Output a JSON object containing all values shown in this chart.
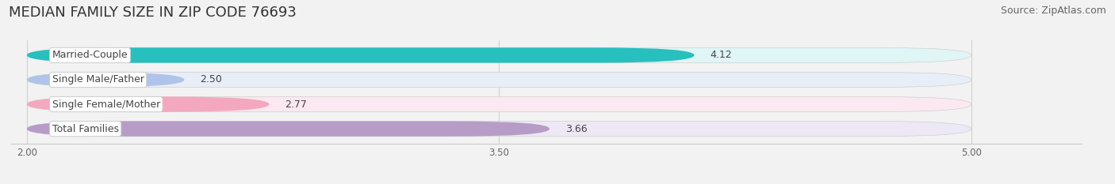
{
  "title": "MEDIAN FAMILY SIZE IN ZIP CODE 76693",
  "source": "Source: ZipAtlas.com",
  "categories": [
    "Married-Couple",
    "Single Male/Father",
    "Single Female/Mother",
    "Total Families"
  ],
  "values": [
    4.12,
    2.5,
    2.77,
    3.66
  ],
  "bar_colors": [
    "#28bfbf",
    "#afc4e8",
    "#f4a8c0",
    "#b89cc8"
  ],
  "track_colors": [
    "#e0f5f5",
    "#e8eef8",
    "#fce8f0",
    "#ede8f5"
  ],
  "label_text_color": "#555555",
  "xlim_min": 2.0,
  "xlim_max": 5.0,
  "xticks": [
    2.0,
    3.5,
    5.0
  ],
  "xtick_labels": [
    "2.00",
    "3.50",
    "5.00"
  ],
  "bar_height": 0.62,
  "bg_color": "#f2f2f2",
  "plot_bg": "#f7f7f7",
  "title_fontsize": 13,
  "source_fontsize": 9,
  "label_fontsize": 9,
  "value_fontsize": 9
}
